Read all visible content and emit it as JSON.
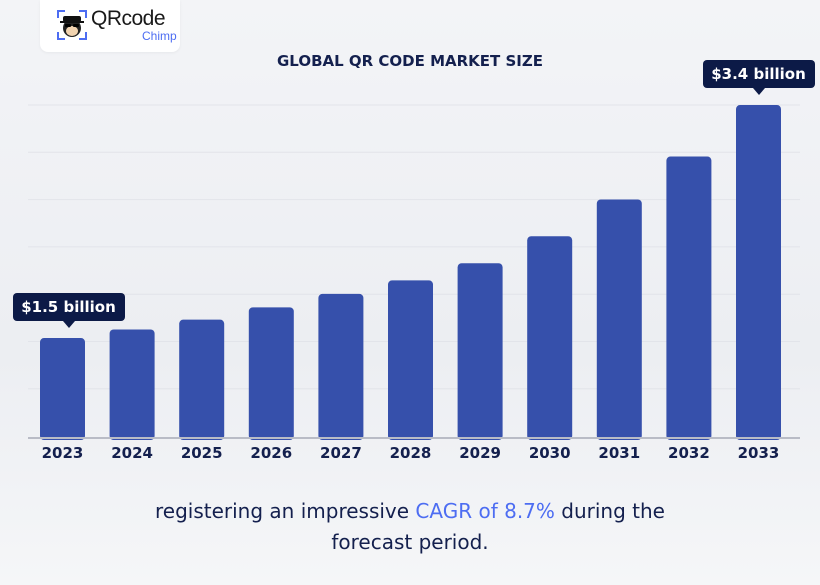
{
  "logo": {
    "name": "QRcode",
    "sub": "Chimp"
  },
  "chart_data": {
    "type": "bar",
    "title": "GLOBAL QR CODE MARKET SIZE",
    "categories": [
      "2023",
      "2024",
      "2025",
      "2026",
      "2027",
      "2028",
      "2029",
      "2030",
      "2031",
      "2032",
      "2033"
    ],
    "values": [
      1.5,
      1.57,
      1.65,
      1.75,
      1.86,
      1.97,
      2.11,
      2.33,
      2.63,
      2.98,
      3.4
    ],
    "unit": "USD billion",
    "annotations": [
      {
        "category": "2023",
        "text": "$1.5 billion"
      },
      {
        "category": "2033",
        "text": "$3.4 billion"
      }
    ],
    "grid": true,
    "bar_color": "#3650ab"
  },
  "footer": {
    "before": "registering an impressive ",
    "highlight": "CAGR of 8.7%",
    "after": " during the",
    "line2": "forecast period."
  }
}
